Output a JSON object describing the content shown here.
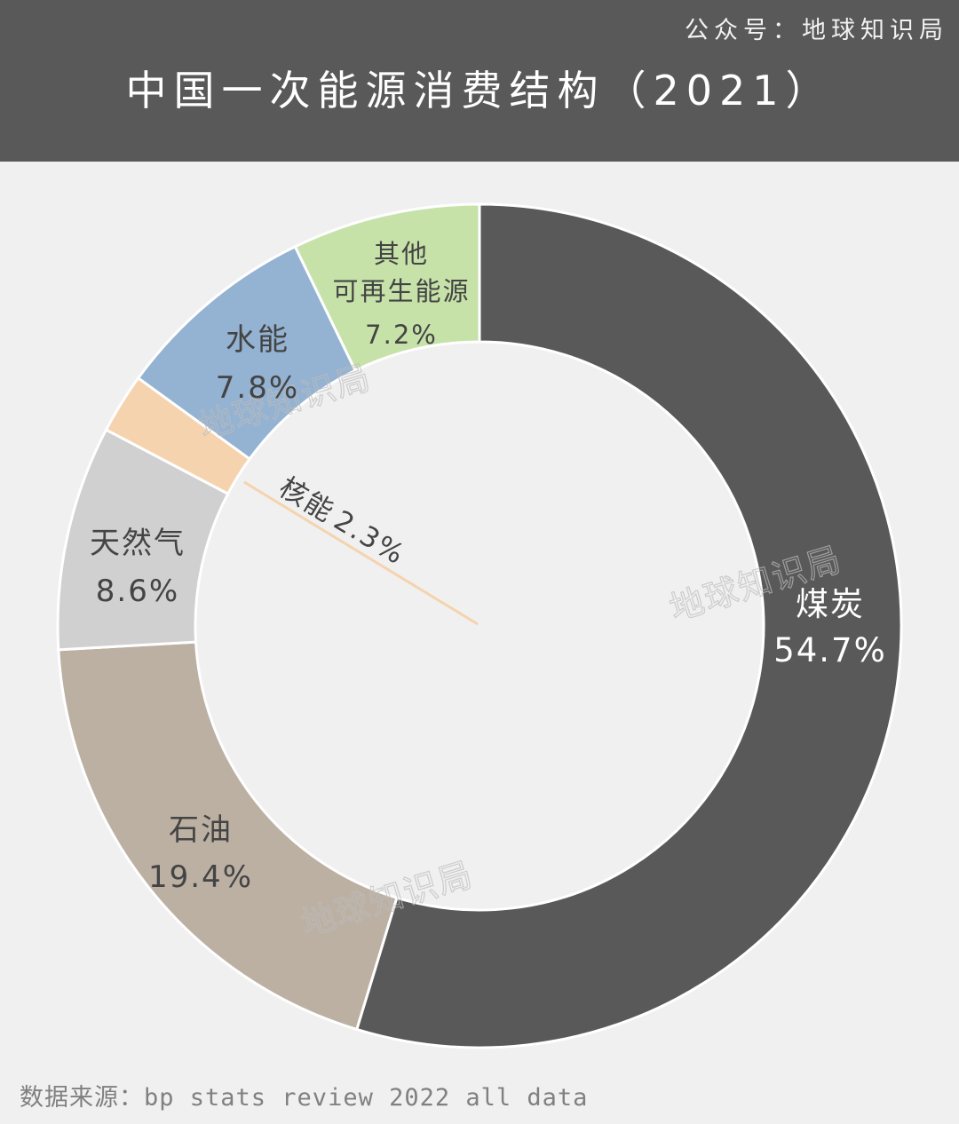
{
  "header": {
    "account": "公众号：地球知识局",
    "title": "中国一次能源消费结构（2021）"
  },
  "watermark": "地球知识局",
  "footer": {
    "source": "数据来源：bp stats review 2022 all data"
  },
  "chart_data": {
    "type": "pie",
    "title": "中国一次能源消费结构（2021）",
    "donut": true,
    "slices": [
      {
        "label": "煤炭",
        "value": 54.7,
        "value_label": "54.7%",
        "color": "#595959",
        "label_color": "#ffffff"
      },
      {
        "label": "石油",
        "value": 19.4,
        "value_label": "19.4%",
        "color": "#bcb0a3",
        "label_color": "#444444"
      },
      {
        "label": "天然气",
        "value": 8.6,
        "value_label": "8.6%",
        "color": "#d0d0d0",
        "label_color": "#444444"
      },
      {
        "label": "核能",
        "value": 2.3,
        "value_label": "2.3%",
        "color": "#f5d3ae",
        "label_color": "#444444"
      },
      {
        "label": "水能",
        "value": 7.8,
        "value_label": "7.8%",
        "color": "#94b2d1",
        "label_color": "#444444"
      },
      {
        "label": "其他可再生能源",
        "label_lines": [
          "其他",
          "可再生能源"
        ],
        "value": 7.2,
        "value_label": "7.2%",
        "color": "#c6e2a9",
        "label_color": "#444444"
      }
    ]
  }
}
